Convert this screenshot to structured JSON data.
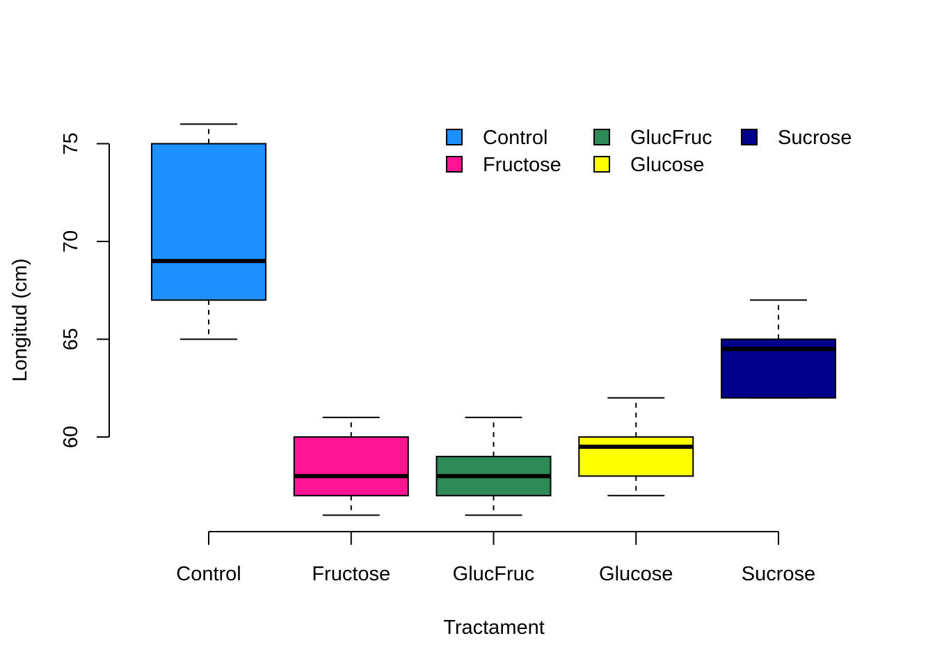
{
  "chart_data": {
    "type": "boxplot",
    "title": "",
    "xlabel": "Tractament",
    "ylabel": "Longitud (cm)",
    "ylim": [
      55,
      77
    ],
    "yticks": [
      60,
      65,
      70,
      75
    ],
    "categories": [
      "Control",
      "Fructose",
      "GlucFruc",
      "Glucose",
      "Sucrose"
    ],
    "series": [
      {
        "name": "Control",
        "color": "#1E90FF",
        "min": 65,
        "q1": 67,
        "median": 69,
        "q3": 75,
        "max": 76
      },
      {
        "name": "Fructose",
        "color": "#FF1493",
        "min": 56,
        "q1": 57,
        "median": 58,
        "q3": 60,
        "max": 61
      },
      {
        "name": "GlucFruc",
        "color": "#2E8B57",
        "min": 56,
        "q1": 57,
        "median": 58,
        "q3": 59,
        "max": 61
      },
      {
        "name": "Glucose",
        "color": "#FFFF00",
        "min": 57,
        "q1": 58,
        "median": 59.5,
        "q3": 60,
        "max": 62
      },
      {
        "name": "Sucrose",
        "color": "#00008B",
        "min": 62,
        "q1": 62,
        "median": 64.5,
        "q3": 65,
        "max": 67
      }
    ],
    "legend": {
      "position": "top-right",
      "columns": 3,
      "entries": [
        "Control",
        "Fructose",
        "GlucFruc",
        "Glucose",
        "Sucrose"
      ]
    }
  }
}
